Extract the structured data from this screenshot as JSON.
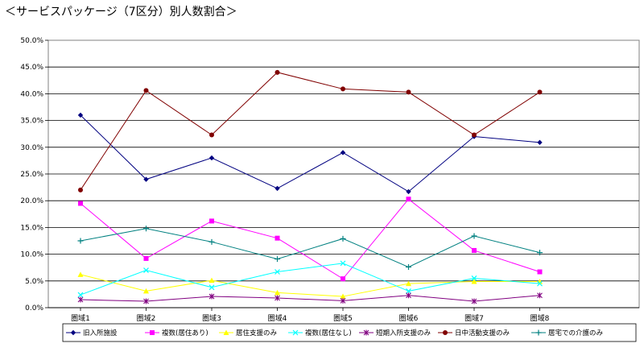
{
  "title": "＜サービスパッケージ（7区分）別人数割合＞",
  "chart_data": {
    "type": "line",
    "title": "＜サービスパッケージ（7区分）別人数割合＞",
    "xlabel": "",
    "ylabel": "",
    "categories": [
      "圏域1",
      "圏域2",
      "圏域3",
      "圏域4",
      "圏域5",
      "圏域6",
      "圏域7",
      "圏域8"
    ],
    "ylim": [
      0,
      50
    ],
    "yticks": [
      "0.0%",
      "5.0%",
      "10.0%",
      "15.0%",
      "20.0%",
      "25.0%",
      "30.0%",
      "35.0%",
      "40.0%",
      "45.0%",
      "50.0%"
    ],
    "grid": true,
    "legend_position": "bottom",
    "series": [
      {
        "name": "旧入所施設",
        "color": "#000080",
        "marker": "diamond",
        "values": [
          36.0,
          24.0,
          28.0,
          22.3,
          29.0,
          21.7,
          32.0,
          30.9
        ]
      },
      {
        "name": "複数(居住あり)",
        "color": "#ff00ff",
        "marker": "square",
        "values": [
          19.5,
          9.2,
          16.2,
          13.0,
          5.4,
          20.3,
          10.7,
          6.7
        ]
      },
      {
        "name": "居住支援のみ",
        "color": "#ffff00",
        "marker": "triangle",
        "values": [
          6.2,
          3.1,
          5.1,
          2.8,
          2.1,
          4.5,
          4.9,
          4.9
        ]
      },
      {
        "name": "複数(居住なし)",
        "color": "#00ffff",
        "marker": "x",
        "values": [
          2.4,
          7.0,
          3.8,
          6.7,
          8.3,
          3.1,
          5.5,
          4.5
        ]
      },
      {
        "name": "短期入所支援のみ",
        "color": "#800080",
        "marker": "star",
        "values": [
          1.5,
          1.2,
          2.1,
          1.8,
          1.3,
          2.3,
          1.2,
          2.3
        ]
      },
      {
        "name": "日中活動支援のみ",
        "color": "#800000",
        "marker": "circle",
        "values": [
          22.0,
          40.6,
          32.3,
          44.0,
          40.9,
          40.3,
          32.3,
          40.3
        ]
      },
      {
        "name": "居宅での介護のみ",
        "color": "#008080",
        "marker": "plus",
        "values": [
          12.5,
          14.8,
          12.3,
          9.1,
          12.9,
          7.6,
          13.4,
          10.3
        ]
      }
    ]
  }
}
